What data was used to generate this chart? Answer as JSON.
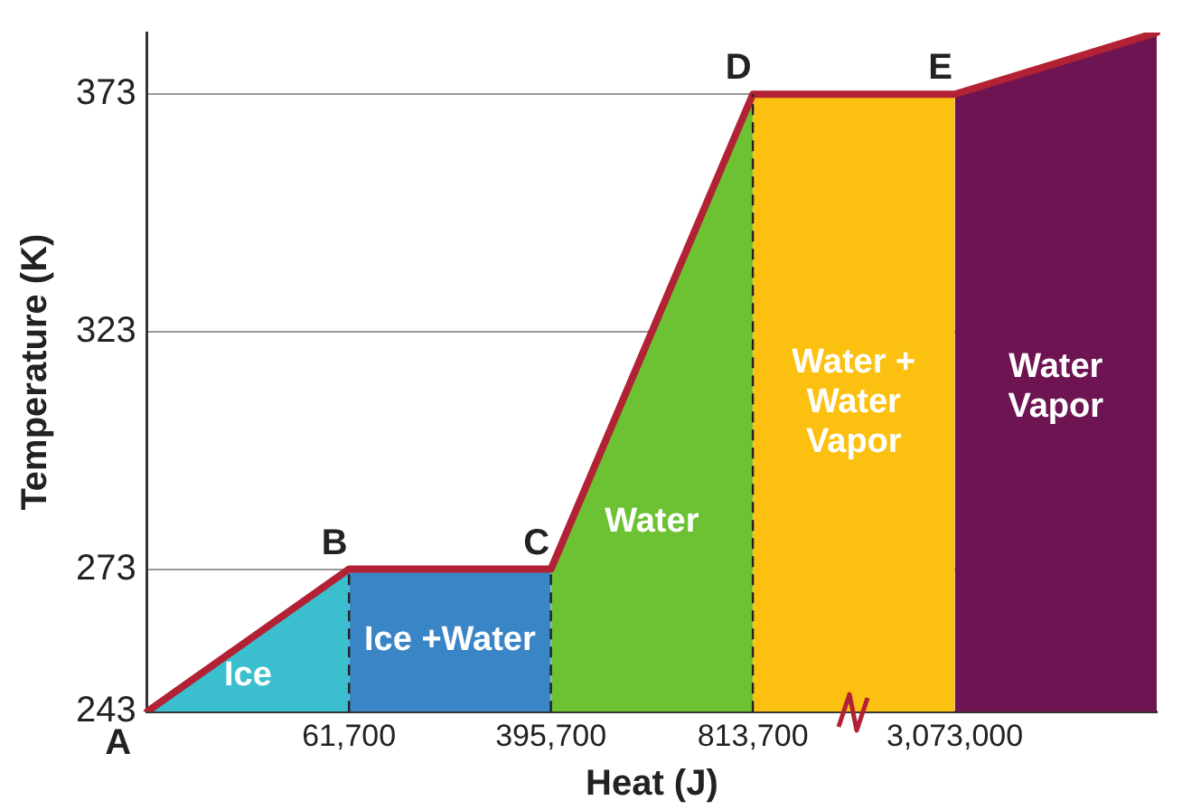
{
  "chart_data": {
    "type": "area",
    "xlabel": "Heat (J)",
    "ylabel": "Temperature (K)",
    "categories": [
      null,
      "61,700",
      "395,700",
      "813,700",
      "3,073,000",
      null
    ],
    "ylim": [
      243,
      386
    ],
    "yticks": [
      243,
      273,
      323,
      373
    ],
    "grid": "y",
    "legend": false,
    "series": [
      {
        "name": "Ice",
        "color": "#3bbfcf",
        "values": [
          243,
          273,
          null,
          null,
          null,
          null
        ]
      },
      {
        "name": "Ice +Water",
        "color": "#3a85c6",
        "values": [
          null,
          273,
          273,
          null,
          null,
          null
        ]
      },
      {
        "name": "Water",
        "color": "#6cc232",
        "values": [
          null,
          null,
          273,
          373,
          null,
          null
        ]
      },
      {
        "name": "Water + Water Vapor",
        "color": "#fcc010",
        "values": [
          null,
          null,
          null,
          373,
          373,
          null
        ]
      },
      {
        "name": "Water Vapor",
        "color": "#6e1452",
        "values": [
          null,
          null,
          null,
          null,
          373,
          386
        ]
      },
      {
        "type": "line",
        "color": "#b22234",
        "values": [
          243,
          273,
          273,
          373,
          373,
          386
        ]
      }
    ],
    "ref_lines": [
      {
        "axis": "x",
        "value": "61,700",
        "line_style": "dashed",
        "color": "#222222"
      },
      {
        "axis": "x",
        "value": "395,700",
        "line_style": "dashed",
        "color": "#222222"
      },
      {
        "axis": "x",
        "value": "813,700",
        "line_style": "dashed",
        "color": "#222222"
      }
    ],
    "annotations": [
      "A",
      {
        "text": "B",
        "x": "61,700",
        "y": 273
      },
      {
        "text": "C",
        "x": "395,700",
        "y": 273
      },
      {
        "text": "D",
        "x": "813,700",
        "y": 373
      },
      {
        "text": "E",
        "x": "3,073,000",
        "y": 373
      }
    ]
  }
}
